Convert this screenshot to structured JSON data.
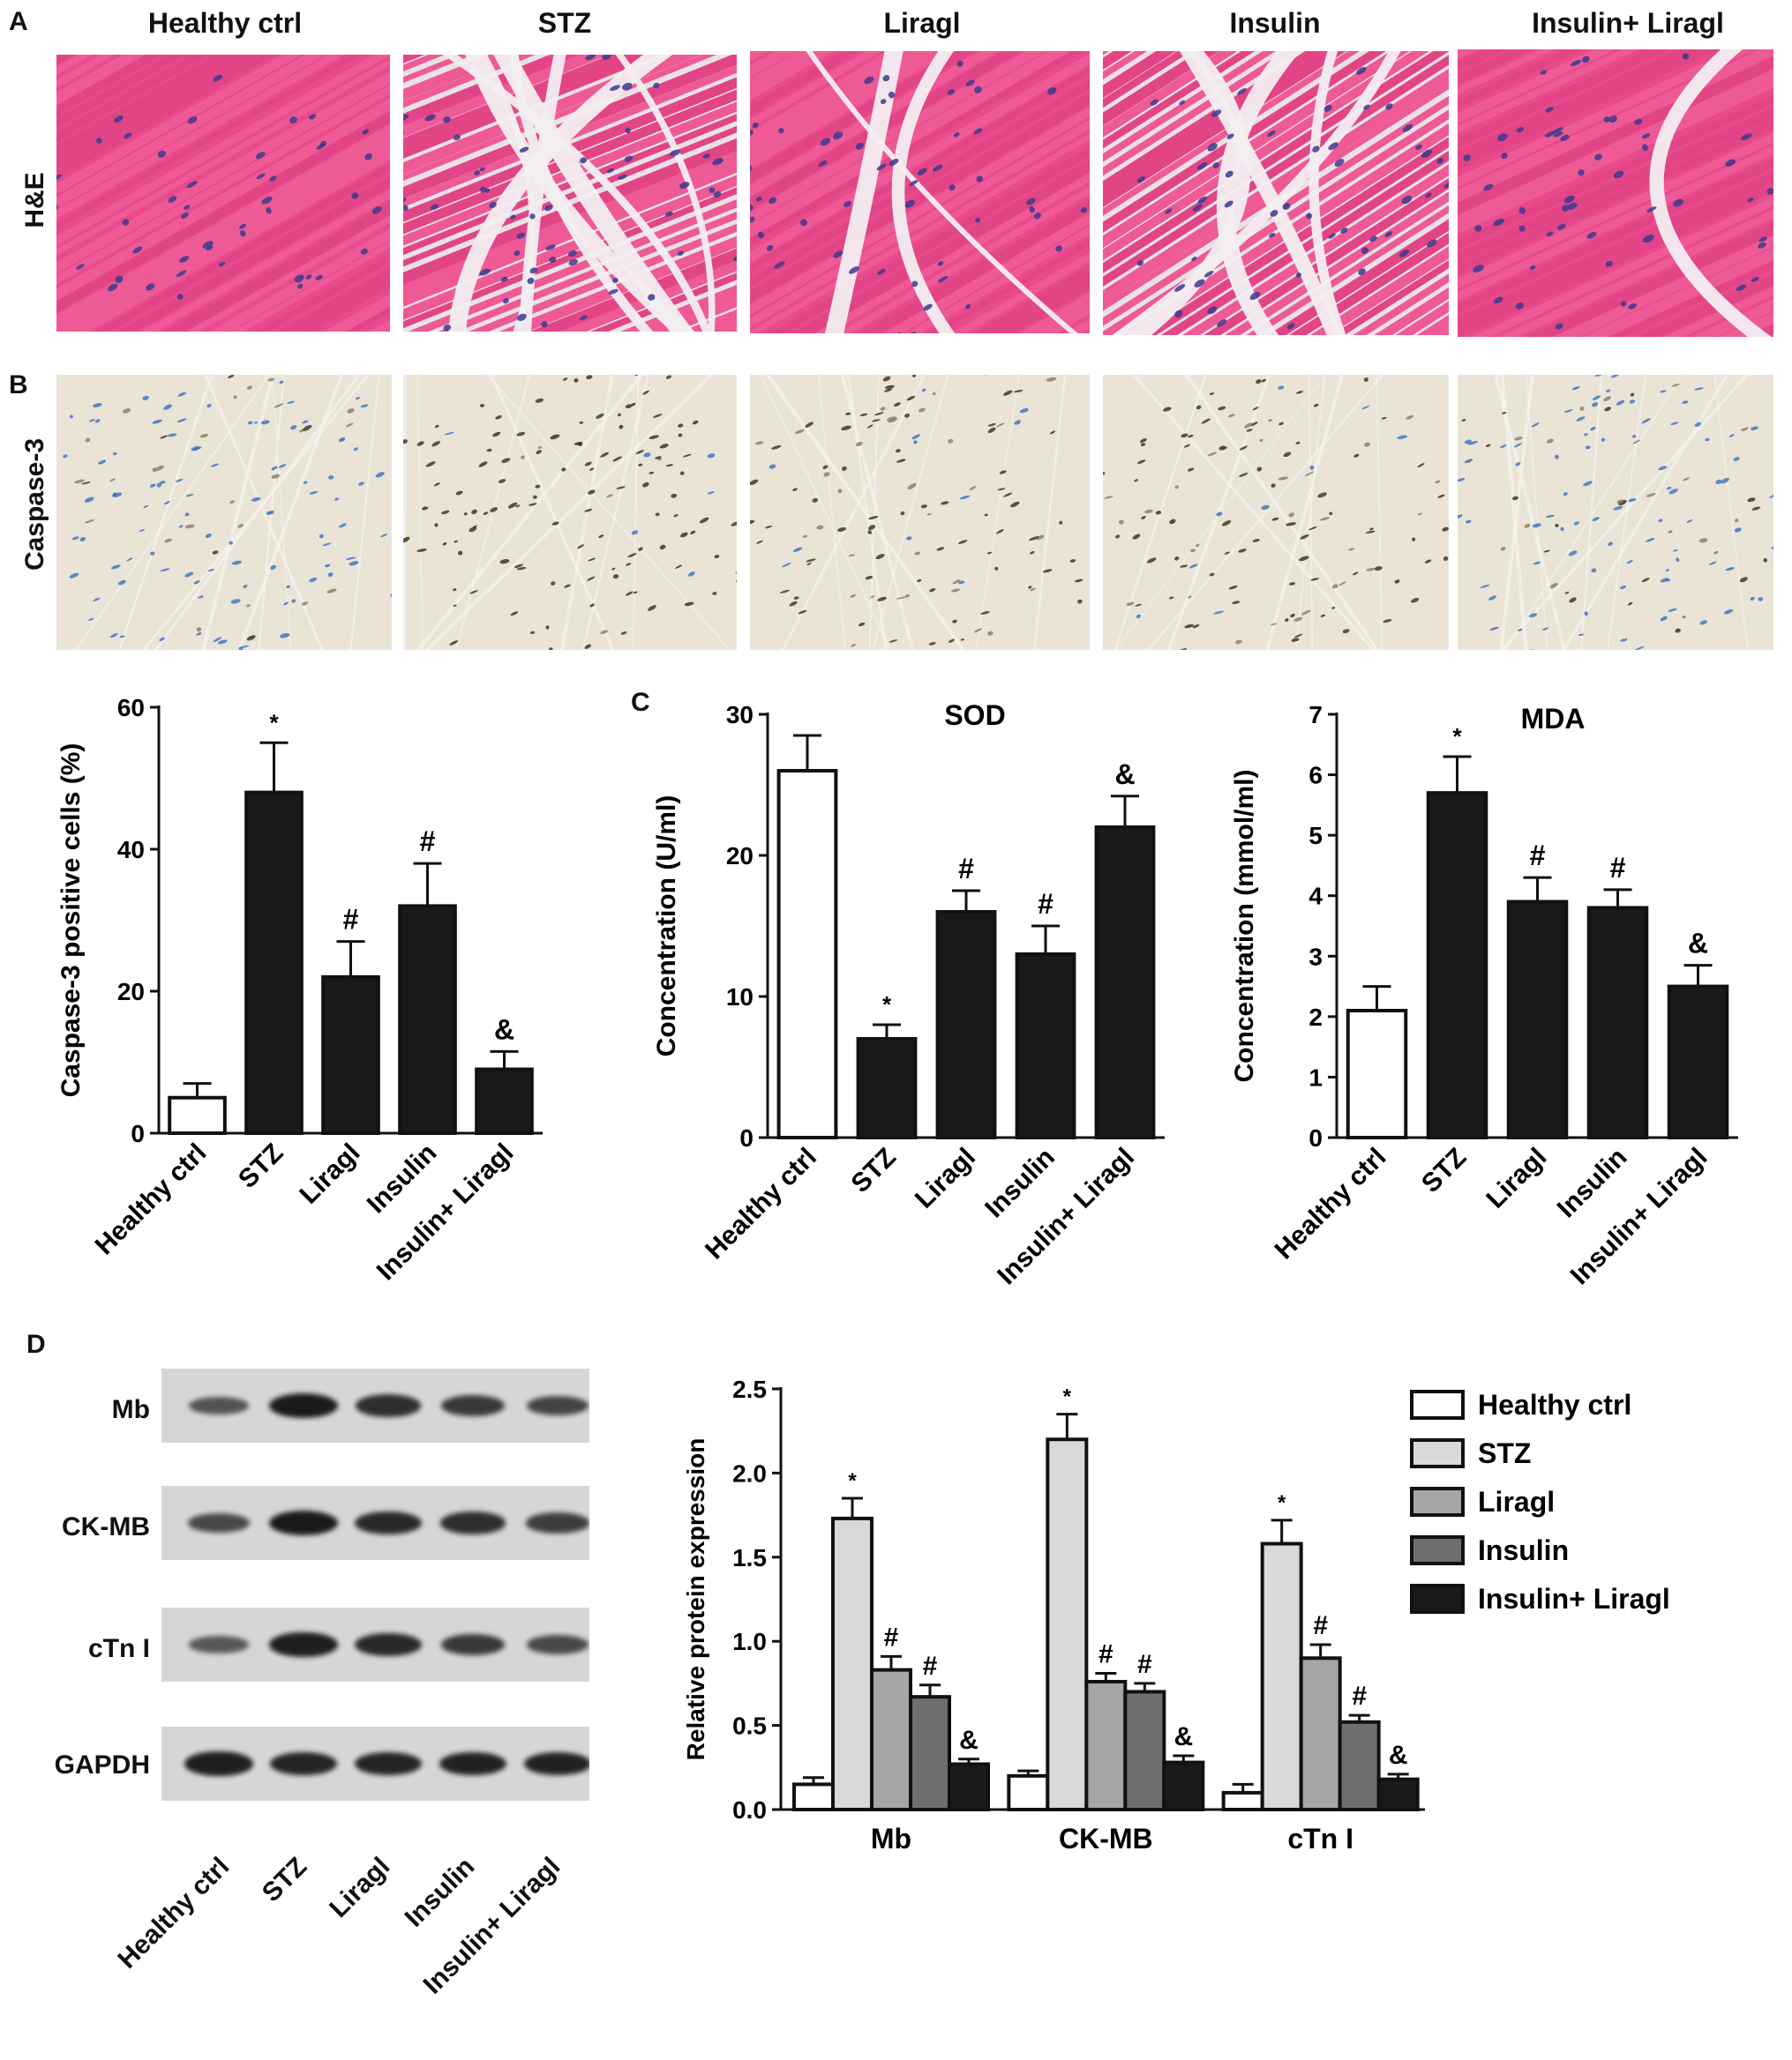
{
  "panel_labels": {
    "a": "A",
    "b": "B",
    "c": "C",
    "d": "D"
  },
  "groups": [
    "Healthy ctrl",
    "STZ",
    "Liragl",
    "Insulin",
    "Insulin+ Liragl"
  ],
  "row_labels": {
    "he": "H&E",
    "caspase": "Caspase-3"
  },
  "chart_data": [
    {
      "type": "bar",
      "panel": "B",
      "title": "",
      "categories": [
        "Healthy ctrl",
        "STZ",
        "Liragl",
        "Insulin",
        "Insulin+ Liragl"
      ],
      "values": [
        5,
        48,
        22,
        32,
        9
      ],
      "errors": [
        2,
        7,
        5,
        6,
        2.5
      ],
      "annotations": [
        "",
        "*",
        "#",
        "#",
        "&"
      ],
      "ylabel": "Caspase-3 positive cells (%)",
      "ylim": [
        0,
        60
      ],
      "yticks": [
        "0",
        "20",
        "40",
        "60"
      ],
      "bar_colors": [
        "#ffffff",
        "#1a1a1a",
        "#1a1a1a",
        "#1a1a1a",
        "#1a1a1a"
      ]
    },
    {
      "type": "bar",
      "panel": "C",
      "title": "SOD",
      "categories": [
        "Healthy ctrl",
        "STZ",
        "Liragl",
        "Insulin",
        "Insulin+ Liragl"
      ],
      "values": [
        26,
        7,
        16,
        13,
        22
      ],
      "errors": [
        2.5,
        1,
        1.5,
        2,
        2.2
      ],
      "annotations": [
        "",
        "*",
        "#",
        "#",
        "&"
      ],
      "ylabel": "Concentration (U/ml)",
      "ylim": [
        0,
        30
      ],
      "yticks": [
        "0",
        "10",
        "20",
        "30"
      ],
      "bar_colors": [
        "#ffffff",
        "#1a1a1a",
        "#1a1a1a",
        "#1a1a1a",
        "#1a1a1a"
      ]
    },
    {
      "type": "bar",
      "panel": "C",
      "title": "MDA",
      "categories": [
        "Healthy ctrl",
        "STZ",
        "Liragl",
        "Insulin",
        "Insulin+ Liragl"
      ],
      "values": [
        2.1,
        5.7,
        3.9,
        3.8,
        2.5
      ],
      "errors": [
        0.4,
        0.6,
        0.4,
        0.3,
        0.35
      ],
      "annotations": [
        "",
        "*",
        "#",
        "#",
        "&"
      ],
      "ylabel": "Concentration (mmol/ml)",
      "ylim": [
        0,
        7
      ],
      "yticks": [
        "0",
        "1",
        "2",
        "3",
        "4",
        "5",
        "6",
        "7"
      ],
      "bar_colors": [
        "#ffffff",
        "#1a1a1a",
        "#1a1a1a",
        "#1a1a1a",
        "#1a1a1a"
      ]
    },
    {
      "type": "bar",
      "panel": "D",
      "title": "",
      "categories": [
        "Mb",
        "CK-MB",
        "cTn I"
      ],
      "series": [
        {
          "name": "Healthy ctrl",
          "values": [
            0.15,
            0.2,
            0.1
          ],
          "errors": [
            0.04,
            0.03,
            0.05
          ],
          "annotations": [
            "",
            "",
            ""
          ]
        },
        {
          "name": "STZ",
          "values": [
            1.73,
            2.2,
            1.58
          ],
          "errors": [
            0.12,
            0.15,
            0.14
          ],
          "annotations": [
            "*",
            "*",
            "*"
          ]
        },
        {
          "name": "Liragl",
          "values": [
            0.83,
            0.76,
            0.9
          ],
          "errors": [
            0.08,
            0.05,
            0.08
          ],
          "annotations": [
            "#",
            "#",
            "#"
          ]
        },
        {
          "name": "Insulin",
          "values": [
            0.67,
            0.7,
            0.52
          ],
          "errors": [
            0.07,
            0.05,
            0.04
          ],
          "annotations": [
            "#",
            "#",
            "#"
          ]
        },
        {
          "name": "Insulin+ Liragl",
          "values": [
            0.27,
            0.28,
            0.18
          ],
          "errors": [
            0.03,
            0.04,
            0.03
          ],
          "annotations": [
            "&",
            "&",
            "&"
          ]
        }
      ],
      "series_colors": [
        "#ffffff",
        "#d9d9d9",
        "#a6a6a6",
        "#6e6e6e",
        "#1a1a1a"
      ],
      "ylabel": "Relative protein expression",
      "ylim": [
        0,
        2.5
      ],
      "yticks": [
        "0.0",
        "0.5",
        "1.0",
        "1.5",
        "2.0",
        "2.5"
      ],
      "legend": "right"
    }
  ],
  "western_blot": {
    "proteins": [
      "Mb",
      "CK-MB",
      "cTn I",
      "GAPDH"
    ],
    "lanes": [
      "Healthy ctrl",
      "STZ",
      "Liragl",
      "Insulin",
      "Insulin+ Liragl"
    ]
  },
  "colors": {
    "he_bg": "#e84a8c",
    "he_fiber": "#ee5a95",
    "nucleus": "#3b3a8f",
    "ihc_bg": "#e9e4d6",
    "ihc_nucleus": "#3a2a18",
    "ihc_blue": "#3a6fc0"
  }
}
